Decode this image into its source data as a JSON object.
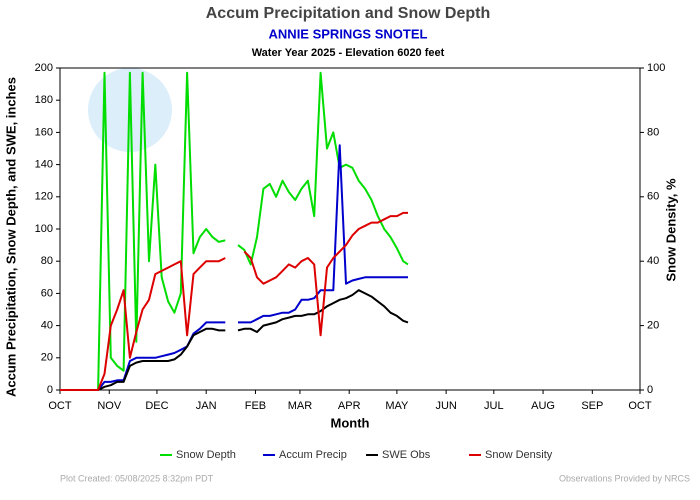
{
  "chart_data": {
    "type": "line",
    "title": "Accum Precipitation and Snow Depth",
    "subtitle": "ANNIE SPRINGS SNOTEL",
    "subtitle2": "Water Year 2025 -  Elevation 6020 feet",
    "xlabel": "Month",
    "ylabel": "Accum Precipitation, Snow Depth, and SWE, inches",
    "y2label": "Snow Density, %",
    "footer_left": "Plot Created: 05/08/2025 8:32pm PDT",
    "footer_right": "Observations Provided by NRCS",
    "xlim": [
      0,
      365
    ],
    "xticks": [
      {
        "value": 0,
        "label": "OCT"
      },
      {
        "value": 31,
        "label": "NOV"
      },
      {
        "value": 61,
        "label": "DEC"
      },
      {
        "value": 92,
        "label": "JAN"
      },
      {
        "value": 123,
        "label": "FEB"
      },
      {
        "value": 151,
        "label": "MAR"
      },
      {
        "value": 182,
        "label": "APR"
      },
      {
        "value": 212,
        "label": "MAY"
      },
      {
        "value": 243,
        "label": "JUN"
      },
      {
        "value": 273,
        "label": "JUL"
      },
      {
        "value": 304,
        "label": "AUG"
      },
      {
        "value": 335,
        "label": "SEP"
      },
      {
        "value": 365,
        "label": "OCT"
      }
    ],
    "ylim": [
      0,
      200
    ],
    "yticks": [
      0,
      20,
      40,
      60,
      80,
      100,
      120,
      140,
      160,
      180,
      200
    ],
    "y2lim": [
      0,
      100
    ],
    "y2ticks": [
      0,
      20,
      40,
      60,
      80,
      100
    ],
    "grid": false,
    "legend": "bottom",
    "x": [
      0,
      4,
      8,
      12,
      16,
      20,
      24,
      28,
      32,
      36,
      40,
      44,
      48,
      52,
      56,
      60,
      64,
      68,
      72,
      76,
      80,
      84,
      88,
      92,
      96,
      100,
      104,
      108,
      112,
      116,
      120,
      124,
      128,
      132,
      136,
      140,
      144,
      148,
      152,
      156,
      160,
      164,
      168,
      172,
      176,
      180,
      184,
      188,
      192,
      196,
      200,
      204,
      208,
      212,
      216,
      219
    ],
    "series": [
      {
        "name": "Snow Depth",
        "color": "#00dd00",
        "values": [
          0,
          0,
          0,
          0,
          0,
          0,
          0,
          197,
          20,
          15,
          12,
          197,
          30,
          197,
          80,
          140,
          70,
          55,
          48,
          60,
          197,
          85,
          95,
          100,
          95,
          92,
          93,
          null,
          90,
          87,
          78,
          95,
          125,
          128,
          120,
          130,
          123,
          118,
          125,
          130,
          108,
          197,
          150,
          160,
          138,
          140,
          138,
          130,
          125,
          118,
          108,
          100,
          95,
          88,
          80,
          78
        ]
      },
      {
        "name": "Accum Precip",
        "color": "#0000cc",
        "values": [
          0,
          0,
          0,
          0,
          0,
          0,
          0,
          5,
          5,
          6,
          6,
          18,
          20,
          20,
          20,
          20,
          21,
          22,
          23,
          25,
          27,
          35,
          38,
          42,
          42,
          42,
          42,
          null,
          42,
          42,
          42,
          44,
          46,
          46,
          47,
          48,
          48,
          50,
          56,
          56,
          57,
          62,
          62,
          62,
          152,
          66,
          68,
          69,
          70,
          70,
          70,
          70,
          70,
          70,
          70,
          70
        ]
      },
      {
        "name": "SWE Obs",
        "color": "#000000",
        "values": [
          0,
          0,
          0,
          0,
          0,
          0,
          0,
          2,
          3,
          5,
          5,
          15,
          17,
          18,
          18,
          18,
          18,
          18,
          19,
          22,
          27,
          34,
          36,
          38,
          38,
          37,
          37,
          null,
          37,
          38,
          38,
          36,
          40,
          41,
          42,
          44,
          45,
          46,
          46,
          47,
          47,
          49,
          52,
          54,
          56,
          57,
          59,
          62,
          60,
          58,
          55,
          52,
          48,
          46,
          43,
          42
        ]
      },
      {
        "name": "Snow Density",
        "color": "#dd0000",
        "axis": "y2",
        "values": [
          0,
          0,
          0,
          0,
          0,
          0,
          0,
          5,
          20,
          25,
          31,
          10,
          18,
          25,
          28,
          36,
          37,
          38,
          39,
          40,
          17,
          36,
          38,
          40,
          40,
          40,
          41,
          null,
          null,
          43,
          41,
          35,
          33,
          34,
          35,
          37,
          39,
          38,
          40,
          41,
          39,
          17,
          38,
          41,
          43,
          45,
          48,
          50,
          51,
          52,
          52,
          53,
          54,
          54,
          55,
          55
        ]
      }
    ]
  }
}
